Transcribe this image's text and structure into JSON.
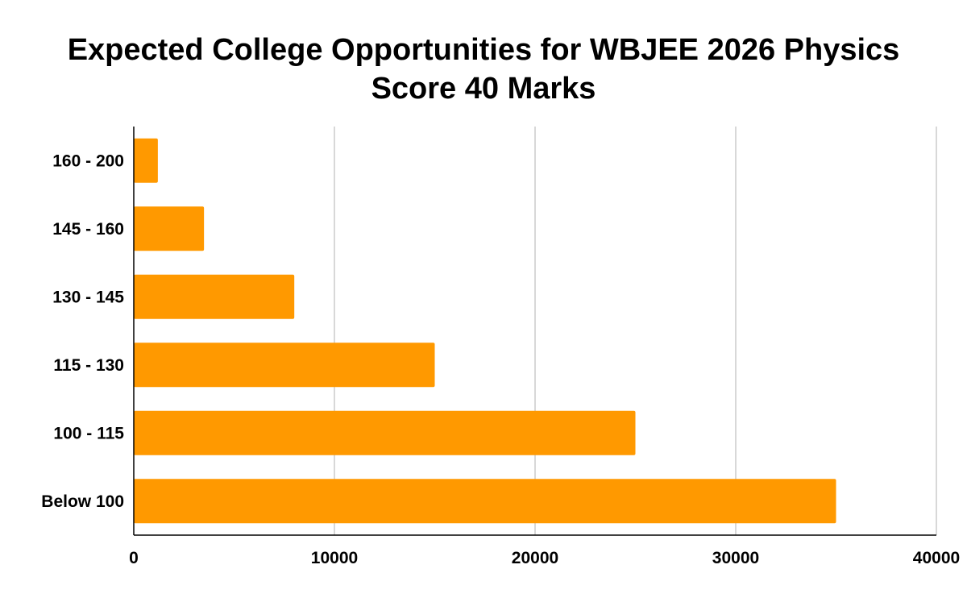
{
  "chart_data": {
    "type": "bar",
    "orientation": "horizontal",
    "title_lines": [
      "Expected College Opportunities for WBJEE 2026 Physics",
      "Score 40 Marks"
    ],
    "categories": [
      "160 - 200",
      "145 - 160",
      "130 - 145",
      "115 - 130",
      "100 - 115",
      "Below 100"
    ],
    "values": [
      1200,
      3500,
      8000,
      15000,
      25000,
      35000
    ],
    "xlim": [
      0,
      40000
    ],
    "x_ticks": [
      "0",
      "10000",
      "20000",
      "30000",
      "40000"
    ],
    "xlabel": "",
    "ylabel": "",
    "grid": true,
    "legend": "none",
    "bar_color": "#ff9900",
    "grid_color": "#cccccc",
    "axis_color": "#000000"
  }
}
